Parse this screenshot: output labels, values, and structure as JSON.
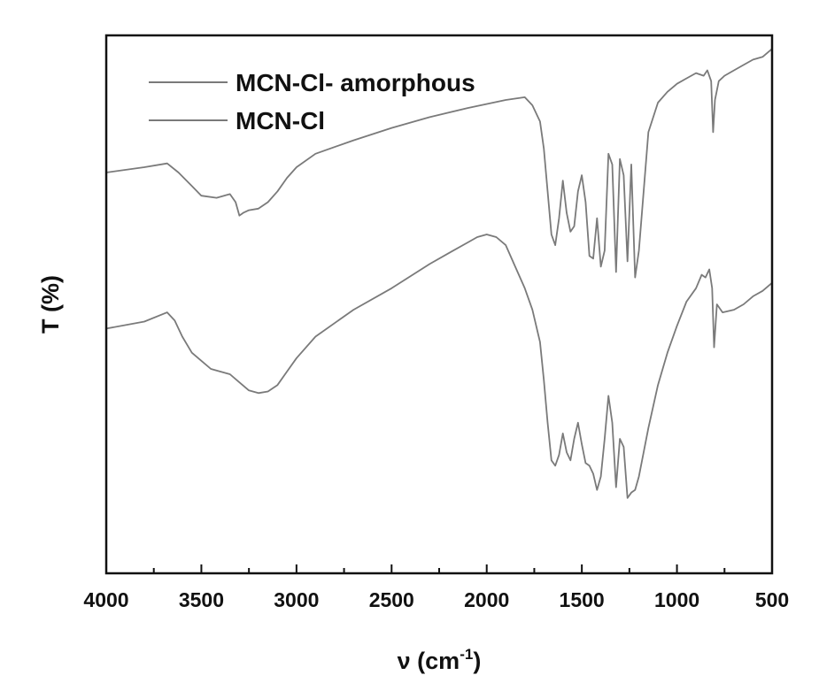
{
  "chart_data": {
    "type": "line",
    "title": "",
    "xlabel": "ν (cm",
    "xlabel_superscript": "-1",
    "xlabel_close": ")",
    "ylabel": "T (%)",
    "xlim": [
      4000,
      500
    ],
    "x_reversed": true,
    "ylim": [
      0,
      100
    ],
    "y_ticks_shown": false,
    "grid": false,
    "legend_position": "top-left",
    "x_ticks": [
      4000,
      3500,
      3000,
      2500,
      2000,
      1500,
      1000,
      500
    ],
    "x_tick_labels": [
      "4000",
      "3500",
      "3000",
      "2500",
      "2000",
      "1500",
      "1000",
      "500"
    ],
    "series_color": "#7a7a7a",
    "series": [
      {
        "name": "MCN-Cl- amorphous",
        "x": [
          4000,
          3800,
          3680,
          3620,
          3550,
          3500,
          3420,
          3350,
          3320,
          3300,
          3280,
          3250,
          3200,
          3150,
          3100,
          3050,
          3000,
          2900,
          2700,
          2500,
          2300,
          2100,
          1900,
          1800,
          1760,
          1720,
          1700,
          1680,
          1660,
          1640,
          1620,
          1600,
          1580,
          1560,
          1540,
          1520,
          1500,
          1480,
          1460,
          1440,
          1420,
          1400,
          1380,
          1360,
          1340,
          1320,
          1300,
          1280,
          1260,
          1240,
          1220,
          1200,
          1150,
          1100,
          1050,
          1000,
          950,
          900,
          860,
          840,
          820,
          810,
          800,
          780,
          750,
          700,
          650,
          600,
          550,
          500
        ],
        "y": [
          74.5,
          75.5,
          76.2,
          74.5,
          72.0,
          70.2,
          69.8,
          70.5,
          69.0,
          66.5,
          67.0,
          67.5,
          67.8,
          69.0,
          71.0,
          73.5,
          75.5,
          78.0,
          80.5,
          82.8,
          84.8,
          86.5,
          88.0,
          88.5,
          87.0,
          84.0,
          79.0,
          71.0,
          63.0,
          61.0,
          66.0,
          73.0,
          67.0,
          63.5,
          64.5,
          71.0,
          74.0,
          69.0,
          59.0,
          58.5,
          66.0,
          57.0,
          60.0,
          78.0,
          76.0,
          56.0,
          77.0,
          74.0,
          58.0,
          76.0,
          55.0,
          60.0,
          82.0,
          87.5,
          89.5,
          91.0,
          92.0,
          93.0,
          92.5,
          93.5,
          91.5,
          82.0,
          88.0,
          91.5,
          92.5,
          93.5,
          94.5,
          95.5,
          96.0,
          97.5
        ]
      },
      {
        "name": "MCN-Cl",
        "x": [
          4000,
          3800,
          3680,
          3640,
          3600,
          3550,
          3500,
          3450,
          3400,
          3350,
          3300,
          3250,
          3200,
          3150,
          3100,
          3050,
          3000,
          2900,
          2700,
          2500,
          2300,
          2200,
          2100,
          2050,
          2000,
          1950,
          1900,
          1850,
          1800,
          1760,
          1720,
          1700,
          1680,
          1660,
          1640,
          1620,
          1600,
          1580,
          1560,
          1540,
          1520,
          1500,
          1480,
          1460,
          1440,
          1420,
          1400,
          1380,
          1360,
          1340,
          1320,
          1300,
          1280,
          1260,
          1240,
          1220,
          1200,
          1150,
          1100,
          1050,
          1000,
          950,
          900,
          870,
          850,
          830,
          815,
          805,
          790,
          760,
          700,
          650,
          600,
          550,
          500
        ],
        "y": [
          45.5,
          46.8,
          48.5,
          47.0,
          44.0,
          41.0,
          39.5,
          38.0,
          37.5,
          37.0,
          35.5,
          34.0,
          33.5,
          33.8,
          35.0,
          37.5,
          40.0,
          44.0,
          49.0,
          53.0,
          57.5,
          59.5,
          61.5,
          62.5,
          63.0,
          62.5,
          61.0,
          57.0,
          53.0,
          49.0,
          43.0,
          36.0,
          28.0,
          21.0,
          20.0,
          22.0,
          26.0,
          22.5,
          21.0,
          25.0,
          28.0,
          24.0,
          20.5,
          20.0,
          18.5,
          15.5,
          18.0,
          25.0,
          33.0,
          28.0,
          16.0,
          25.0,
          23.5,
          14.0,
          15.0,
          15.5,
          18.0,
          27.0,
          35.0,
          41.0,
          46.0,
          50.5,
          53.0,
          55.5,
          55.0,
          56.5,
          53.0,
          42.0,
          50.0,
          48.5,
          49.0,
          50.0,
          51.5,
          52.5,
          54.0
        ]
      }
    ]
  }
}
